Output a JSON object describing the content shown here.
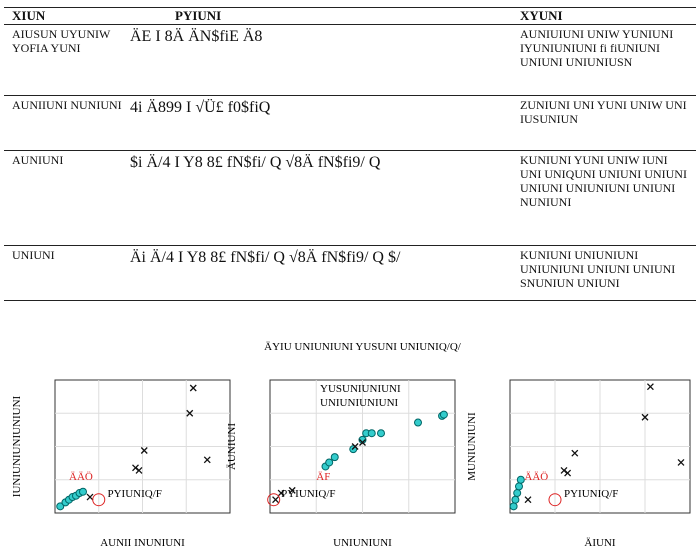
{
  "table": {
    "header": [
      "XIUN",
      "PYIUNI",
      "XYUNI"
    ],
    "rows": [
      [
        "AIUSUN UYUNIW YOFIA YUNI",
        "ÄE I 8Ä ÄN$fiE Ä8",
        "AUNIUIUNI UNIW YUNIUNI IYUNIUNIUNI fi fiUNIUNI UNIUNI UNIUNIUSN"
      ],
      [
        "AUNIIUNI NUNIUNI",
        "4i Ä899 I √Ü£ f0$fiQ",
        "ZUNIUNI UNI YUNI UNIW UNI IUSUNIUN"
      ],
      [
        "AUNIUNI",
        "$i Ä/4 I Y8 8£ fN$fi/ Q √8Ä fN$fi9/ Q",
        "KUNIUNI YUNI UNIW IUNI UNI UNIQUNI UNIUNI UNIUNI UNIUNI UNIUNIUNI UNIUNI NUNIUNI"
      ],
      [
        "UNIUNI",
        "Äi Ä/4 I Y8 8£ fN$fi/ Q √8Ä fN$fi9/ Q $/",
        "KUNIUNI UNIUNIUNI UNIUNIUNI UNIUNI UNIUNI SNUNIUN UNIUNI"
      ]
    ]
  },
  "figure": {
    "plots": [
      {
        "title": "",
        "xlabel": "AUNII INUNIUNI",
        "ylabel": "IUNIUNIUNIUNIUNI",
        "legend": [],
        "circles_x": [
          0.03,
          0.06,
          0.08,
          0.1,
          0.12,
          0.14,
          0.16
        ],
        "circles_y": [
          0.05,
          0.08,
          0.1,
          0.12,
          0.13,
          0.15,
          0.16
        ],
        "crosses_x": [
          0.79,
          0.77,
          0.87,
          0.51,
          0.46,
          0.48,
          0.2
        ],
        "crosses_y": [
          0.94,
          0.75,
          0.4,
          0.47,
          0.34,
          0.32,
          0.12
        ],
        "annotation": "PYIUNIQ/F",
        "red_label": "ÄÄÖ"
      },
      {
        "title": "ÄYIU UNIUNIUNI YUSUNI UNIUNIQ/Q/",
        "xlabel": "UNIUNIUNI",
        "ylabel": "ÄUNIUNI",
        "legend": [
          "YUSUNIUNIUNI",
          "UNIUNIUNIUNI"
        ],
        "circles_x": [
          0.3,
          0.32,
          0.35,
          0.45,
          0.5,
          0.52,
          0.55,
          0.6,
          0.8,
          0.93,
          0.94
        ],
        "circles_y": [
          0.35,
          0.38,
          0.42,
          0.48,
          0.55,
          0.6,
          0.6,
          0.6,
          0.68,
          0.73,
          0.74
        ],
        "crosses_x": [
          0.03,
          0.06,
          0.12,
          0.46,
          0.5
        ],
        "crosses_y": [
          0.1,
          0.15,
          0.17,
          0.5,
          0.53
        ],
        "annotation": "PYIUNIQ/F",
        "red_label": "ÄF"
      },
      {
        "title": "",
        "xlabel": "ÄIUNI",
        "ylabel": "MUNIUNIUNI",
        "legend": [],
        "circles_x": [
          0.02,
          0.03,
          0.04,
          0.05,
          0.06
        ],
        "circles_y": [
          0.05,
          0.1,
          0.15,
          0.2,
          0.25
        ],
        "crosses_x": [
          0.78,
          0.75,
          0.95,
          0.36,
          0.32,
          0.3,
          0.1
        ],
        "crosses_y": [
          0.95,
          0.72,
          0.38,
          0.45,
          0.3,
          0.32,
          0.1
        ],
        "annotation": "PYIUNIQ/F",
        "red_label": "ÄÄÖ"
      }
    ]
  }
}
